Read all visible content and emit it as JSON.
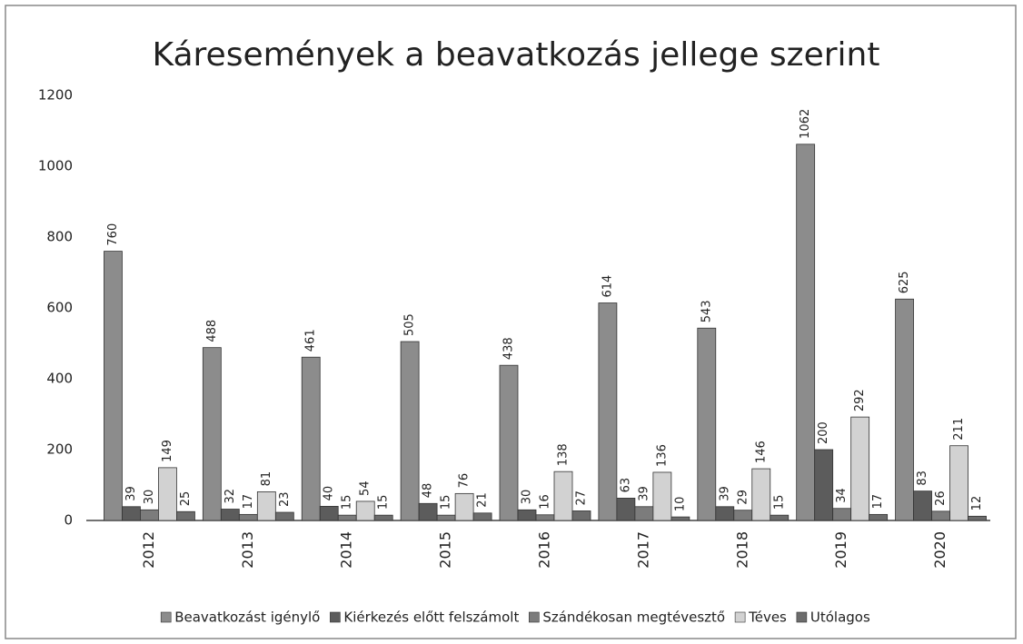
{
  "chart_data": {
    "type": "bar",
    "title": "Káresemények a beavatkozás jellege szerint",
    "categories": [
      "2012",
      "2013",
      "2014",
      "2015",
      "2016",
      "2017",
      "2018",
      "2019",
      "2020"
    ],
    "series": [
      {
        "name": "Beavatkozást igénylő",
        "color": "#8c8c8c",
        "values": [
          760,
          488,
          461,
          505,
          438,
          614,
          543,
          1062,
          625
        ]
      },
      {
        "name": "Kiérkezés előtt felszámolt",
        "color": "#5c5c5c",
        "values": [
          39,
          32,
          40,
          48,
          30,
          63,
          39,
          200,
          83
        ]
      },
      {
        "name": "Szándékosan megtévesztő",
        "color": "#7c7c7c",
        "values": [
          30,
          17,
          15,
          15,
          16,
          39,
          29,
          34,
          26
        ]
      },
      {
        "name": "Téves",
        "color": "#d2d2d2",
        "values": [
          149,
          81,
          54,
          76,
          138,
          136,
          146,
          292,
          211
        ]
      },
      {
        "name": "Utólagos",
        "color": "#6c6c6c",
        "values": [
          25,
          23,
          15,
          21,
          27,
          10,
          15,
          17,
          12
        ]
      }
    ],
    "ylim": [
      0,
      1200
    ],
    "yticks": [
      0,
      200,
      400,
      600,
      800,
      1000,
      1200
    ],
    "grid": false,
    "legend": "bottom"
  }
}
